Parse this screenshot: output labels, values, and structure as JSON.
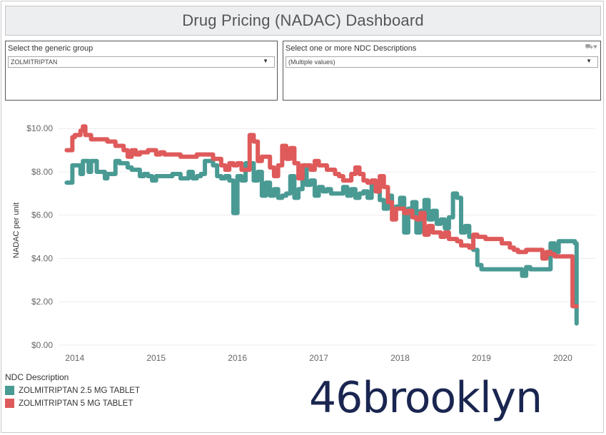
{
  "dashboard": {
    "title": "Drug Pricing (NADAC) Dashboard"
  },
  "filters": {
    "generic_group": {
      "label": "Select the generic group",
      "value": "ZOLMITRIPTAN"
    },
    "ndc": {
      "label": "Select one or more NDC Descriptions",
      "value": "(Multiple values)"
    }
  },
  "legend": {
    "title": "NDC Description",
    "items": [
      {
        "label": "ZOLMITRIPTAN 2.5 MG TABLET",
        "color": "#4a9a94"
      },
      {
        "label": "ZOLMITRIPTAN 5 MG TABLET",
        "color": "#df5a5a"
      }
    ]
  },
  "brand": {
    "text": "46brooklyn"
  },
  "chart_data": {
    "type": "line",
    "xlabel": "",
    "ylabel": "NADAC per unit",
    "xlim": [
      2013.8,
      2020.4
    ],
    "ylim": [
      0,
      10.6
    ],
    "x_ticks": [
      "2014",
      "2015",
      "2016",
      "2017",
      "2018",
      "2019",
      "2020"
    ],
    "y_ticks": [
      "$0.00",
      "$2.00",
      "$4.00",
      "$6.00",
      "$8.00",
      "$10.00"
    ],
    "grid": true,
    "legend_position": "bottom-left",
    "series": [
      {
        "name": "ZOLMITRIPTAN 2.5 MG TABLET",
        "color": "#4a9a94",
        "x": [
          2013.9,
          2013.97,
          2014.0,
          2014.07,
          2014.1,
          2014.17,
          2014.2,
          2014.27,
          2014.3,
          2014.37,
          2014.4,
          2014.5,
          2014.55,
          2014.65,
          2014.7,
          2014.8,
          2014.85,
          2014.9,
          2014.95,
          2015.0,
          2015.1,
          2015.2,
          2015.3,
          2015.4,
          2015.45,
          2015.5,
          2015.55,
          2015.6,
          2015.7,
          2015.75,
          2015.8,
          2015.85,
          2015.9,
          2015.95,
          2016.0,
          2016.05,
          2016.1,
          2016.15,
          2016.2,
          2016.25,
          2016.3,
          2016.35,
          2016.4,
          2016.45,
          2016.5,
          2016.55,
          2016.6,
          2016.65,
          2016.7,
          2016.75,
          2016.8,
          2016.85,
          2016.9,
          2016.95,
          2017.0,
          2017.05,
          2017.1,
          2017.15,
          2017.2,
          2017.3,
          2017.35,
          2017.4,
          2017.45,
          2017.5,
          2017.55,
          2017.6,
          2017.65,
          2017.7,
          2017.75,
          2017.8,
          2017.85,
          2017.9,
          2017.95,
          2018.0,
          2018.05,
          2018.1,
          2018.15,
          2018.2,
          2018.25,
          2018.3,
          2018.35,
          2018.4,
          2018.45,
          2018.5,
          2018.55,
          2018.6,
          2018.65,
          2018.7,
          2018.75,
          2018.8,
          2018.85,
          2018.9,
          2018.95,
          2019.0,
          2019.1,
          2019.2,
          2019.3,
          2019.35,
          2019.4,
          2019.45,
          2019.5,
          2019.55,
          2019.6,
          2019.7,
          2019.75,
          2019.8,
          2019.85,
          2019.9,
          2019.95,
          2020.0,
          2020.05,
          2020.1,
          2020.15,
          2020.17
        ],
        "y": [
          7.5,
          8.3,
          8.3,
          7.9,
          8.5,
          8.0,
          8.5,
          8.0,
          8.0,
          7.7,
          7.9,
          8.5,
          8.4,
          8.2,
          8.1,
          7.8,
          7.9,
          7.8,
          7.6,
          7.8,
          7.8,
          7.9,
          7.7,
          8.0,
          7.7,
          7.8,
          7.9,
          8.5,
          8.3,
          7.8,
          7.7,
          7.8,
          7.6,
          6.1,
          7.8,
          7.6,
          8.4,
          8.4,
          7.6,
          8.0,
          6.9,
          7.5,
          6.9,
          7.2,
          6.8,
          6.9,
          7.0,
          7.8,
          6.8,
          7.2,
          8.3,
          7.4,
          7.6,
          6.9,
          7.3,
          7.1,
          7.2,
          7.0,
          7.0,
          7.3,
          6.9,
          7.2,
          6.8,
          7.0,
          7.1,
          6.8,
          7.4,
          7.1,
          6.7,
          6.3,
          6.9,
          6.3,
          6.4,
          6.8,
          5.2,
          6.3,
          6.6,
          5.2,
          6.2,
          6.7,
          5.8,
          6.2,
          5.6,
          5.8,
          5.4,
          5.9,
          7.0,
          6.8,
          5.2,
          5.5,
          5.0,
          4.4,
          3.7,
          3.5,
          3.5,
          3.5,
          3.5,
          3.5,
          3.5,
          3.5,
          3.2,
          3.6,
          3.5,
          3.5,
          3.5,
          3.5,
          4.7,
          4.3,
          4.8,
          4.8,
          4.8,
          4.8,
          4.7,
          1.0
        ]
      },
      {
        "name": "ZOLMITRIPTAN 5 MG TABLET",
        "color": "#df5a5a",
        "x": [
          2013.9,
          2013.97,
          2014.0,
          2014.07,
          2014.1,
          2014.13,
          2014.2,
          2014.25,
          2014.3,
          2014.4,
          2014.5,
          2014.6,
          2014.65,
          2014.7,
          2014.75,
          2014.8,
          2014.85,
          2014.9,
          2015.0,
          2015.05,
          2015.1,
          2015.2,
          2015.3,
          2015.4,
          2015.5,
          2015.6,
          2015.7,
          2015.8,
          2015.85,
          2015.9,
          2015.95,
          2016.0,
          2016.05,
          2016.1,
          2016.15,
          2016.2,
          2016.25,
          2016.3,
          2016.35,
          2016.4,
          2016.45,
          2016.5,
          2016.55,
          2016.6,
          2016.65,
          2016.7,
          2016.75,
          2016.8,
          2016.85,
          2016.9,
          2016.95,
          2017.0,
          2017.1,
          2017.2,
          2017.25,
          2017.3,
          2017.35,
          2017.4,
          2017.45,
          2017.5,
          2017.55,
          2017.6,
          2017.65,
          2017.7,
          2017.75,
          2017.8,
          2017.85,
          2017.9,
          2017.95,
          2018.0,
          2018.05,
          2018.1,
          2018.15,
          2018.2,
          2018.25,
          2018.3,
          2018.35,
          2018.4,
          2018.45,
          2018.5,
          2018.55,
          2018.6,
          2018.65,
          2018.7,
          2018.75,
          2018.8,
          2018.85,
          2018.9,
          2018.95,
          2019.0,
          2019.05,
          2019.1,
          2019.15,
          2019.2,
          2019.25,
          2019.3,
          2019.35,
          2019.4,
          2019.45,
          2019.5,
          2019.55,
          2019.6,
          2019.7,
          2019.75,
          2019.8,
          2019.85,
          2019.9,
          2019.95,
          2020.0,
          2020.05,
          2020.1,
          2020.12,
          2020.17
        ],
        "y": [
          9.0,
          9.6,
          9.7,
          9.9,
          10.1,
          9.7,
          9.5,
          9.5,
          9.5,
          9.4,
          9.2,
          9.0,
          8.7,
          9.0,
          8.8,
          8.9,
          8.9,
          9.0,
          8.8,
          8.9,
          8.8,
          8.8,
          8.7,
          8.7,
          8.8,
          8.8,
          8.6,
          8.3,
          8.1,
          8.4,
          8.3,
          8.4,
          8.1,
          8.1,
          9.7,
          9.4,
          8.5,
          8.7,
          8.7,
          8.2,
          7.8,
          8.3,
          9.2,
          8.6,
          9.1,
          8.4,
          7.7,
          8.3,
          8.3,
          8.1,
          8.5,
          8.3,
          8.1,
          7.9,
          7.8,
          7.6,
          7.6,
          7.9,
          8.2,
          7.9,
          7.6,
          7.5,
          7.6,
          7.1,
          7.8,
          7.3,
          6.6,
          5.8,
          6.3,
          6.3,
          6.1,
          6.2,
          5.9,
          5.8,
          6.1,
          5.1,
          5.5,
          5.2,
          5.2,
          5.0,
          5.2,
          4.9,
          4.9,
          4.8,
          4.6,
          4.6,
          4.5,
          5.1,
          5.0,
          5.0,
          4.9,
          4.9,
          4.9,
          4.9,
          4.7,
          4.7,
          4.5,
          4.4,
          4.3,
          4.3,
          4.4,
          4.4,
          4.4,
          4.0,
          4.3,
          4.2,
          4.1,
          4.1,
          4.1,
          4.1,
          4.1,
          1.8,
          1.8
        ]
      }
    ]
  }
}
